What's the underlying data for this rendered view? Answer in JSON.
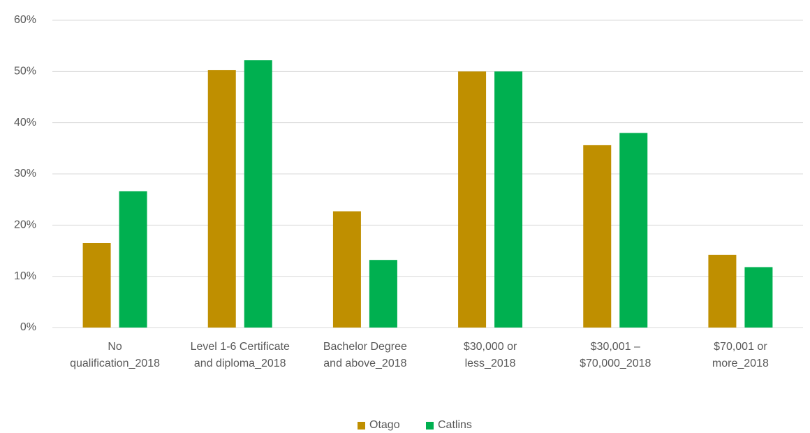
{
  "chart_data": {
    "type": "bar",
    "categories": [
      "No qualification_2018",
      "Level 1-6 Certificate and diploma_2018",
      "Bachelor Degree and above_2018",
      "$30,000 or less_2018",
      "$30,001 – $70,000_2018",
      "$70,001 or more_2018"
    ],
    "series": [
      {
        "name": "Otago",
        "color": "#bf8f00",
        "values": [
          16.5,
          50.3,
          22.7,
          50.0,
          35.6,
          14.2
        ]
      },
      {
        "name": "Catlins",
        "color": "#00b050",
        "values": [
          26.6,
          52.2,
          13.2,
          50.0,
          38.0,
          11.8
        ]
      }
    ],
    "ylim": [
      0,
      60
    ],
    "yticks": [
      {
        "value": 0,
        "label": "0%"
      },
      {
        "value": 10,
        "label": "10%"
      },
      {
        "value": 20,
        "label": "20%"
      },
      {
        "value": 30,
        "label": "30%"
      },
      {
        "value": 40,
        "label": "40%"
      },
      {
        "value": 50,
        "label": "50%"
      },
      {
        "value": 60,
        "label": "60%"
      }
    ],
    "grid": true,
    "legend": "bottom"
  }
}
